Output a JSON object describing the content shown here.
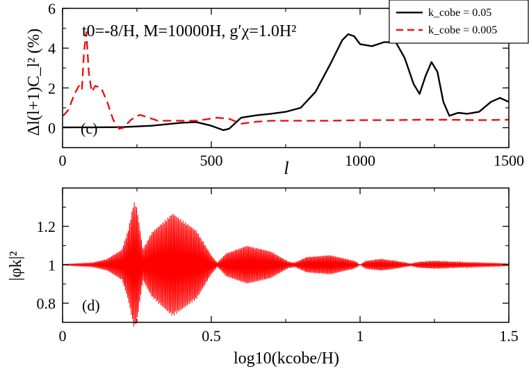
{
  "chart_data": [
    {
      "type": "line",
      "panel_label": "(c)",
      "annotation": "t0=-8/H, M=10000H, g′χ=1.0H²",
      "xlabel": "l",
      "ylabel": "Δl(l+1)C_l² (%)",
      "xlim": [
        0,
        1500
      ],
      "ylim": [
        -1,
        6
      ],
      "xticks": [
        "0",
        "500",
        "1000",
        "1500"
      ],
      "yticks": [
        "0",
        "2",
        "4",
        "6"
      ],
      "legend_position": "top-right",
      "series": [
        {
          "name": "k_cobe = 0.05",
          "color": "#000000",
          "dash": "solid",
          "points": [
            [
              2,
              0.02
            ],
            [
              100,
              0.02
            ],
            [
              200,
              0.03
            ],
            [
              300,
              0.1
            ],
            [
              400,
              0.25
            ],
            [
              450,
              0.28
            ],
            [
              500,
              0.1
            ],
            [
              540,
              -0.12
            ],
            [
              560,
              -0.05
            ],
            [
              600,
              0.5
            ],
            [
              650,
              0.62
            ],
            [
              700,
              0.7
            ],
            [
              750,
              0.8
            ],
            [
              800,
              1.0
            ],
            [
              850,
              1.8
            ],
            [
              900,
              3.2
            ],
            [
              940,
              4.4
            ],
            [
              960,
              4.7
            ],
            [
              980,
              4.6
            ],
            [
              1000,
              4.2
            ],
            [
              1040,
              4.1
            ],
            [
              1080,
              4.3
            ],
            [
              1120,
              4.3
            ],
            [
              1150,
              3.5
            ],
            [
              1180,
              2.2
            ],
            [
              1200,
              1.7
            ],
            [
              1220,
              2.6
            ],
            [
              1240,
              3.3
            ],
            [
              1260,
              2.8
            ],
            [
              1280,
              1.3
            ],
            [
              1300,
              0.6
            ],
            [
              1330,
              0.75
            ],
            [
              1360,
              0.7
            ],
            [
              1400,
              0.8
            ],
            [
              1440,
              1.3
            ],
            [
              1470,
              1.5
            ],
            [
              1500,
              1.3
            ]
          ]
        },
        {
          "name": "k_cobe = 0.005",
          "color": "#ee1111",
          "dash": "dashed",
          "points": [
            [
              2,
              0.6
            ],
            [
              20,
              0.9
            ],
            [
              40,
              1.7
            ],
            [
              55,
              2.1
            ],
            [
              65,
              1.9
            ],
            [
              72,
              3.8
            ],
            [
              80,
              4.8
            ],
            [
              88,
              2.8
            ],
            [
              98,
              1.8
            ],
            [
              110,
              2.1
            ],
            [
              130,
              2.0
            ],
            [
              150,
              1.3
            ],
            [
              170,
              0.4
            ],
            [
              190,
              -0.05
            ],
            [
              205,
              0.0
            ],
            [
              230,
              0.4
            ],
            [
              260,
              0.65
            ],
            [
              290,
              0.5
            ],
            [
              320,
              0.35
            ],
            [
              380,
              0.35
            ],
            [
              450,
              0.35
            ],
            [
              520,
              0.5
            ],
            [
              560,
              0.45
            ],
            [
              600,
              0.2
            ],
            [
              650,
              0.3
            ],
            [
              700,
              0.35
            ],
            [
              800,
              0.35
            ],
            [
              900,
              0.35
            ],
            [
              1000,
              0.38
            ],
            [
              1100,
              0.38
            ],
            [
              1200,
              0.4
            ],
            [
              1300,
              0.4
            ],
            [
              1400,
              0.38
            ],
            [
              1500,
              0.4
            ]
          ]
        }
      ]
    },
    {
      "type": "line",
      "panel_label": "(d)",
      "xlabel": "log10(kcobe/H)",
      "ylabel": "|φk|²",
      "xlim": [
        0,
        1.5
      ],
      "ylim": [
        0.7,
        1.4
      ],
      "xticks": [
        "0",
        "0.5",
        "1",
        "1.5"
      ],
      "yticks": [
        "0.8",
        "1",
        "1.2"
      ],
      "series": [
        {
          "name": "",
          "color": "#ff0000",
          "envelope_x": [
            0,
            0.1,
            0.15,
            0.2,
            0.22,
            0.24,
            0.25,
            0.27,
            0.3,
            0.37,
            0.45,
            0.5,
            0.52,
            0.55,
            0.62,
            0.7,
            0.76,
            0.78,
            0.82,
            0.9,
            0.98,
            1.0,
            1.02,
            1.07,
            1.12,
            1.17,
            1.2,
            1.25,
            1.32,
            1.4,
            1.45,
            1.5
          ],
          "envelope_amp": [
            0.002,
            0.01,
            0.03,
            0.08,
            0.18,
            0.33,
            0.3,
            0.08,
            0.17,
            0.27,
            0.18,
            0.05,
            0.01,
            0.06,
            0.1,
            0.07,
            0.015,
            0.01,
            0.04,
            0.05,
            0.02,
            0.0,
            0.02,
            0.03,
            0.02,
            0.005,
            0.015,
            0.02,
            0.015,
            0.01,
            0.008,
            0.005
          ],
          "oscillation_frequency": 250
        }
      ]
    }
  ]
}
